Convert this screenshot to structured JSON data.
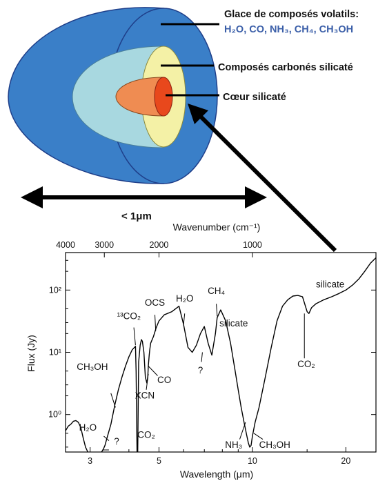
{
  "diagram": {
    "layers": [
      {
        "line1": "Glace de composés volatils:",
        "line2": "H₂O, CO, NH₃, CH₄, CH₃OH",
        "color": "#3a7fc8"
      },
      {
        "line1": "Composés carbonés silicaté",
        "color": "#f4f1a6"
      },
      {
        "line1": "Cœur silicaté",
        "color": "#e8481c"
      }
    ],
    "inner_colors": {
      "light_blue": "#a8d8e0",
      "orange": "#ef8c52"
    },
    "size_label": "< 1μm"
  },
  "chart_data": {
    "type": "line",
    "title": "",
    "xlabel": "Wavelength (μm)",
    "ylabel": "Flux (Jy)",
    "x2label": "Wavenumber (cm⁻¹)",
    "xscale": "log",
    "yscale": "log",
    "xlim": [
      2.5,
      25
    ],
    "ylim": [
      0.25,
      400
    ],
    "xticks": [
      3,
      5,
      10,
      20
    ],
    "x2ticks": [
      4000,
      3000,
      2000,
      1000
    ],
    "yticks": [
      {
        "value": 1,
        "label": "10⁰"
      },
      {
        "value": 10,
        "label": "10¹"
      },
      {
        "value": 100,
        "label": "10²"
      }
    ],
    "series": [
      {
        "x": [
          2.5,
          2.55,
          2.6,
          2.65,
          2.7,
          2.75,
          2.8,
          2.85,
          2.9,
          2.95,
          3.0,
          3.05,
          3.1,
          3.15,
          3.2,
          3.3,
          3.35,
          3.4,
          3.5,
          3.6,
          3.7,
          3.8,
          3.9,
          4.0,
          4.1,
          4.2,
          4.22,
          4.25,
          4.27,
          4.3,
          4.35,
          4.39,
          4.42,
          4.47,
          4.52,
          4.55,
          4.57,
          4.6,
          4.62,
          4.65,
          4.67,
          4.7,
          4.8,
          4.9,
          5.0,
          5.2,
          5.5,
          5.8,
          6.0,
          6.2,
          6.4,
          6.6,
          6.8,
          7.0,
          7.2,
          7.4,
          7.6,
          7.7,
          7.9,
          8.2,
          8.5,
          8.8,
          9.0,
          9.2,
          9.4,
          9.6,
          9.7,
          9.8,
          9.9,
          10.0,
          10.2,
          10.5,
          11.0,
          11.5,
          12.0,
          12.5,
          13.0,
          13.5,
          14.0,
          14.5,
          15.0,
          15.2,
          15.5,
          16.0,
          17.0,
          18.0,
          19.0,
          20.0,
          21.0,
          22.0,
          23.0,
          24.0,
          25.0
        ],
        "y": [
          0.55,
          0.65,
          0.7,
          0.78,
          0.8,
          0.75,
          0.62,
          0.42,
          0.3,
          0.25,
          0.22,
          0.2,
          0.2,
          0.2,
          0.22,
          0.27,
          0.32,
          0.42,
          0.7,
          1.4,
          2.5,
          4.0,
          6.0,
          8.5,
          11,
          12.5,
          5,
          0.22,
          0.22,
          7,
          13,
          16,
          15,
          10,
          4,
          3.5,
          3.2,
          4,
          6,
          9,
          11,
          14,
          18,
          25,
          32,
          40,
          45,
          55,
          28,
          12,
          10,
          13,
          20,
          26,
          14,
          9,
          20,
          36,
          48,
          32,
          14,
          5,
          2.5,
          1.3,
          0.75,
          0.45,
          0.35,
          0.3,
          0.32,
          0.45,
          0.75,
          1.3,
          4,
          12,
          32,
          55,
          70,
          80,
          82,
          78,
          45,
          42,
          52,
          60,
          70,
          78,
          88,
          100,
          120,
          150,
          200,
          270,
          330
        ]
      }
    ],
    "annotations": [
      {
        "text": "CH₃OH"
      },
      {
        "text": "H₂O"
      },
      {
        "text": "?"
      },
      {
        "text": "¹³CO₂"
      },
      {
        "text": "OCS"
      },
      {
        "text": "H₂O"
      },
      {
        "text": "CH₄"
      },
      {
        "text": "silicate"
      },
      {
        "text": "silicate"
      },
      {
        "text": "CO"
      },
      {
        "text": "XCN"
      },
      {
        "text": "?"
      },
      {
        "text": "CO₂"
      },
      {
        "text": "CO₂"
      },
      {
        "text": "NH₃"
      },
      {
        "text": "CH₃OH"
      }
    ]
  }
}
